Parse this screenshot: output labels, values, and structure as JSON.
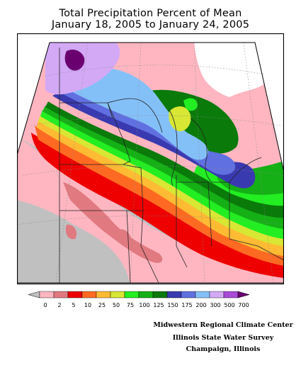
{
  "title_line1": "Total Precipitation Percent of Mean",
  "title_line2": "January 18, 2005 to January 24, 2005",
  "legend": {
    "labels": [
      "0",
      "2",
      "5",
      "10",
      "25",
      "50",
      "75",
      "100",
      "125",
      "150",
      "175",
      "200",
      "300",
      "500",
      "700"
    ],
    "colors": [
      "#c0c0c0",
      "#ffb6c1",
      "#e07a80",
      "#ee0000",
      "#ff6a22",
      "#ffbb33",
      "#d8e634",
      "#22ee22",
      "#15b015",
      "#0a7a0a",
      "#3a3ab0",
      "#6070e0",
      "#84c0f8",
      "#d3a9f6",
      "#a84bd8",
      "#6a0070"
    ]
  },
  "credits": {
    "line1": "Midwestern Regional Climate Center",
    "line2": "Illinois State Water Survey",
    "line3": "Champaign, Illinois"
  }
}
